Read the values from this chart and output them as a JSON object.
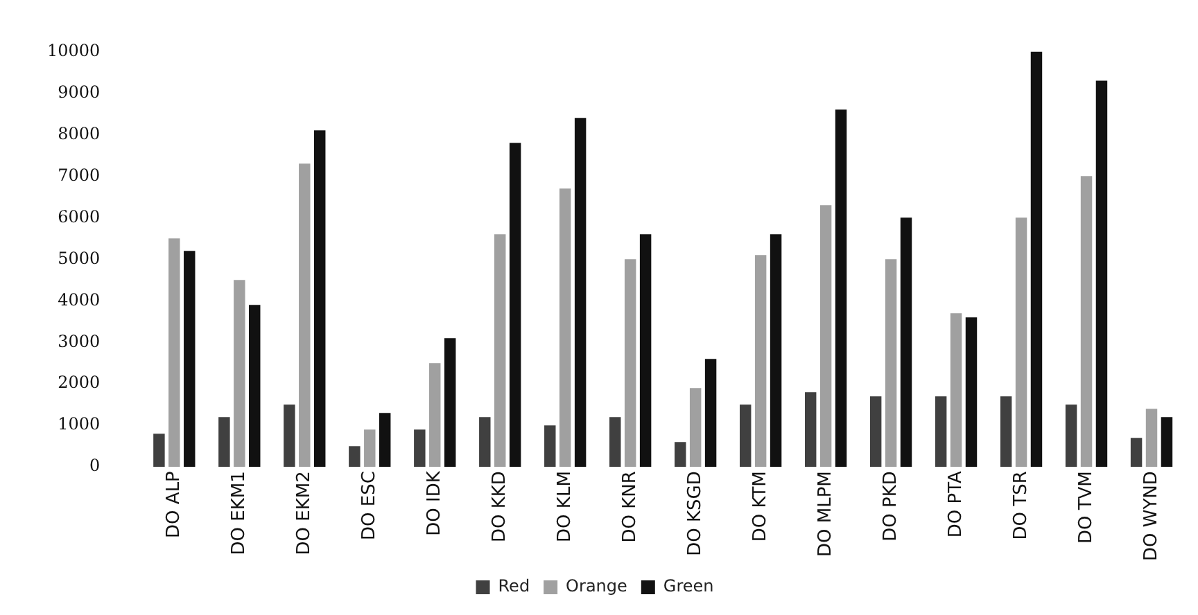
{
  "chart_data": {
    "type": "bar",
    "categories": [
      "DO ALP",
      "DO EKM1",
      "DO EKM2",
      "DO ESC",
      "DO IDK",
      "DO KKD",
      "DO KLM",
      "DO KNR",
      "DO KSGD",
      "DO KTM",
      "DO MLPM",
      "DO PKD",
      "DO PTA",
      "DO TSR",
      "DO TVM",
      "DO WYND"
    ],
    "series": [
      {
        "name": "Red",
        "color": "#404040",
        "values": [
          800,
          1200,
          1500,
          500,
          900,
          1200,
          1000,
          1200,
          600,
          1500,
          1800,
          1700,
          1700,
          1700,
          1500,
          700
        ]
      },
      {
        "name": "Orange",
        "color": "#a0a0a0",
        "values": [
          5500,
          4500,
          7300,
          900,
          2500,
          5600,
          6700,
          5000,
          1900,
          5100,
          6300,
          5000,
          3700,
          6000,
          7000,
          1400
        ]
      },
      {
        "name": "Green",
        "color": "#111111",
        "values": [
          5200,
          3900,
          8100,
          1300,
          3100,
          7800,
          8400,
          5600,
          2600,
          5600,
          8600,
          6000,
          3600,
          10000,
          9300,
          1200
        ]
      }
    ],
    "ylim": [
      0,
      10000
    ],
    "yticks": [
      0,
      1000,
      2000,
      3000,
      4000,
      5000,
      6000,
      7000,
      8000,
      9000,
      10000
    ],
    "grid": false,
    "legend": "bottom"
  }
}
